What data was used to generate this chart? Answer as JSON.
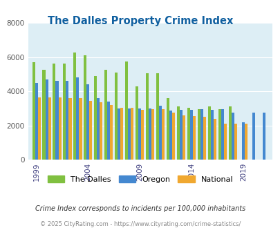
{
  "title": "The Dalles Property Crime Index",
  "title_color": "#1060a0",
  "years": [
    1999,
    2000,
    2001,
    2002,
    2003,
    2004,
    2005,
    2006,
    2007,
    2008,
    2009,
    2010,
    2011,
    2012,
    2013,
    2014,
    2015,
    2016,
    2017,
    2018,
    2019,
    2020,
    2021
  ],
  "the_dalles": [
    5700,
    5250,
    5600,
    5600,
    6250,
    6100,
    4900,
    5250,
    5100,
    5750,
    4300,
    5050,
    5050,
    3600,
    3100,
    3050,
    2950,
    3100,
    2950,
    3100,
    null,
    null,
    null
  ],
  "oregon": [
    4500,
    4700,
    4600,
    4600,
    4800,
    4400,
    3600,
    3400,
    3000,
    3000,
    3000,
    3000,
    3150,
    2850,
    2900,
    2900,
    2950,
    2900,
    2950,
    2750,
    2200,
    2750,
    2750
  ],
  "national": [
    3650,
    3650,
    3650,
    3600,
    3600,
    3450,
    3350,
    3200,
    3050,
    3050,
    2900,
    2950,
    2950,
    2750,
    2600,
    2550,
    2500,
    2400,
    2100,
    2100,
    2100,
    null,
    null
  ],
  "dalles_color": "#80c040",
  "oregon_color": "#4488d0",
  "national_color": "#f0a830",
  "ylim": [
    0,
    8000
  ],
  "yticks": [
    0,
    2000,
    4000,
    6000,
    8000
  ],
  "xtick_years": [
    1999,
    2004,
    2009,
    2014,
    2019
  ],
  "plot_bg": "#ddeef5",
  "footnote": "Crime Index corresponds to incidents per 100,000 inhabitants",
  "footnote2": "© 2025 CityRating.com - https://www.cityrating.com/crime-statistics/",
  "footnote_color": "#333333",
  "footnote2_color": "#888888",
  "bar_width": 0.27
}
